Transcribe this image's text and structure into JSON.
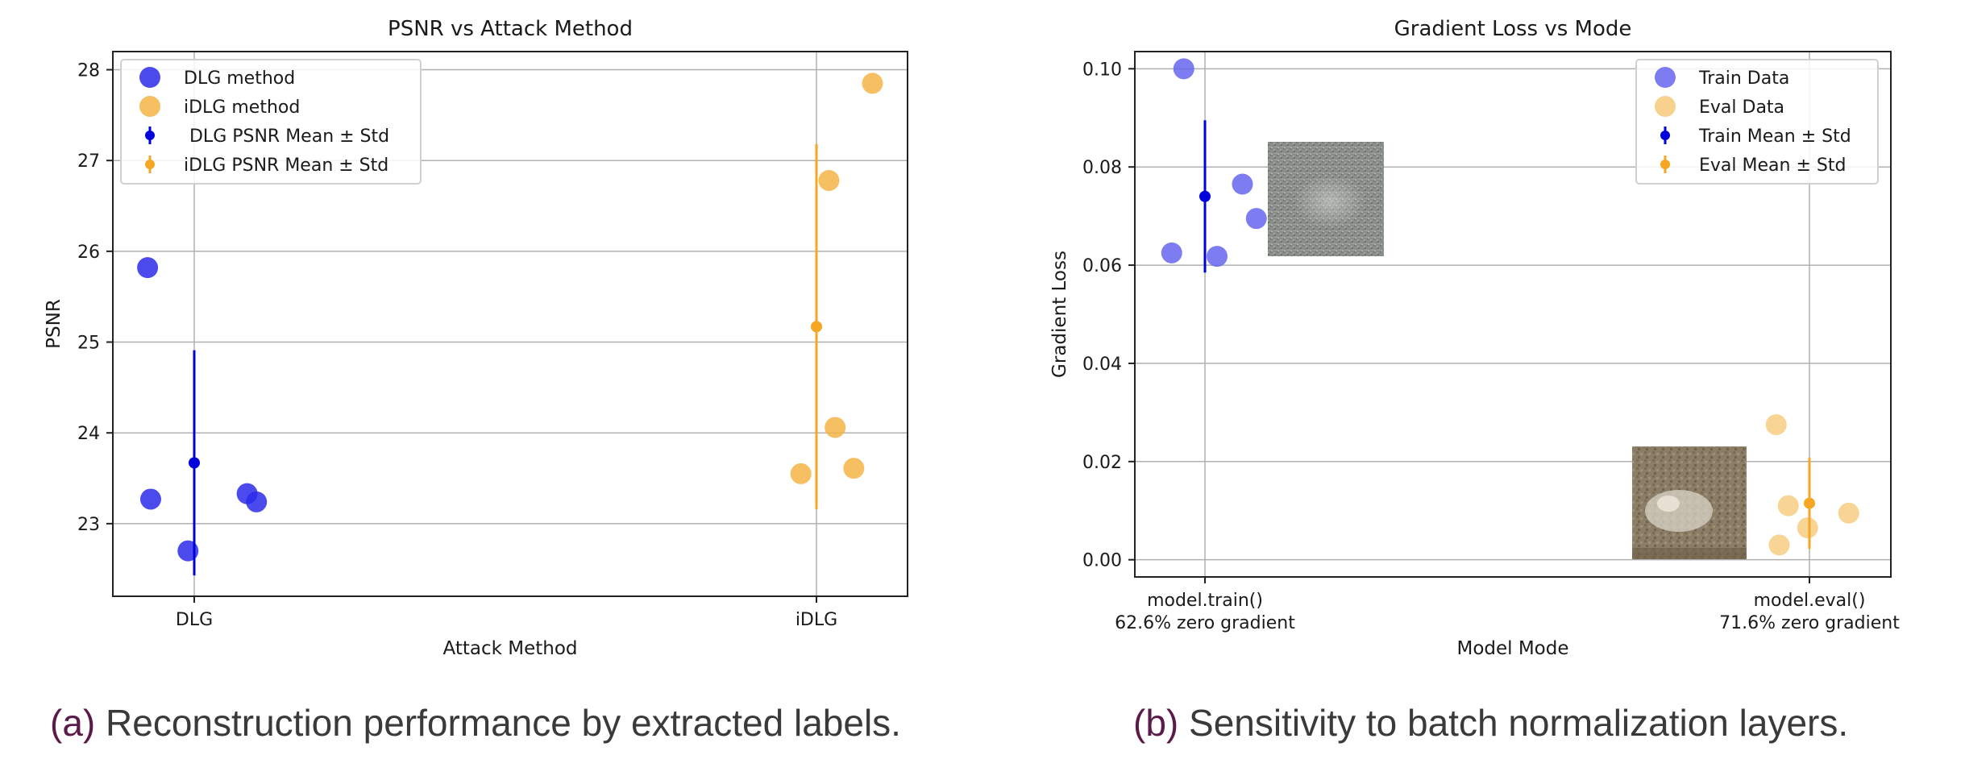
{
  "chart_data": [
    {
      "type": "scatter",
      "title": "PSNR vs Attack Method",
      "xlabel": "Attack Method",
      "ylabel": "PSNR",
      "categories": [
        "DLG",
        "iDLG"
      ],
      "ylim": [
        22.2,
        28.2
      ],
      "yticks": [
        23,
        24,
        25,
        26,
        27,
        28
      ],
      "grid": true,
      "legend_position": "top-left",
      "legend": [
        "DLG method",
        "iDLG method",
        " DLG PSNR Mean ± Std",
        "iDLG PSNR Mean ± Std"
      ],
      "series": [
        {
          "name": "DLG method",
          "color": "#2b2bea",
          "points": [
            {
              "cat": 0,
              "offset": -0.075,
              "y": 25.82
            },
            {
              "cat": 0,
              "offset": -0.07,
              "y": 23.27
            },
            {
              "cat": 0,
              "offset": -0.01,
              "y": 22.7
            },
            {
              "cat": 0,
              "offset": 0.085,
              "y": 23.33
            },
            {
              "cat": 0,
              "offset": 0.1,
              "y": 23.24
            }
          ]
        },
        {
          "name": "iDLG method",
          "color": "#f5b445",
          "points": [
            {
              "cat": 1,
              "offset": 0.09,
              "y": 27.85
            },
            {
              "cat": 1,
              "offset": 0.02,
              "y": 26.78
            },
            {
              "cat": 1,
              "offset": 0.03,
              "y": 24.06
            },
            {
              "cat": 1,
              "offset": 0.06,
              "y": 23.61
            },
            {
              "cat": 1,
              "offset": -0.025,
              "y": 23.55
            }
          ]
        }
      ],
      "errorbars": [
        {
          "name": " DLG PSNR Mean ± Std",
          "color": "#0000dd",
          "cat": 0,
          "mean": 23.67,
          "std": 1.24
        },
        {
          "name": "iDLG PSNR Mean ± Std",
          "color": "#f5a623",
          "cat": 1,
          "mean": 25.17,
          "std": 2.01
        }
      ]
    },
    {
      "type": "scatter",
      "title": "Gradient Loss vs Mode",
      "xlabel": "Model Mode",
      "ylabel": "Gradient Loss",
      "categories": [
        "model.train()\n62.6% zero gradient",
        "model.eval()\n71.6% zero gradient"
      ],
      "ylim": [
        -0.0035,
        0.1035
      ],
      "yticks": [
        0.0,
        0.02,
        0.04,
        0.06,
        0.08,
        0.1
      ],
      "ytick_labels": [
        "0.00",
        "0.02",
        "0.04",
        "0.06",
        "0.08",
        "0.10"
      ],
      "grid": true,
      "legend_position": "top-right",
      "legend": [
        "Train Data",
        "Eval Data",
        "Train Mean ± Std",
        "Eval Mean ± Std"
      ],
      "series": [
        {
          "name": "Train Data",
          "color": "#6666ee",
          "points": [
            {
              "cat": 0,
              "offset": -0.055,
              "y": 0.0625
            },
            {
              "cat": 0,
              "offset": -0.035,
              "y": 0.1
            },
            {
              "cat": 0,
              "offset": 0.02,
              "y": 0.0618
            },
            {
              "cat": 0,
              "offset": 0.062,
              "y": 0.0765
            },
            {
              "cat": 0,
              "offset": 0.085,
              "y": 0.0695
            }
          ]
        },
        {
          "name": "Eval Data",
          "color": "#f7cc82",
          "points": [
            {
              "cat": 1,
              "offset": -0.055,
              "y": 0.0275
            },
            {
              "cat": 1,
              "offset": -0.035,
              "y": 0.011
            },
            {
              "cat": 1,
              "offset": -0.05,
              "y": 0.003
            },
            {
              "cat": 1,
              "offset": -0.003,
              "y": 0.0065
            },
            {
              "cat": 1,
              "offset": 0.065,
              "y": 0.0095
            }
          ]
        }
      ],
      "errorbars": [
        {
          "name": "Train Mean ± Std",
          "color": "#0000dd",
          "cat": 0,
          "mean": 0.074,
          "std": 0.0155
        },
        {
          "name": "Eval Mean ± Std",
          "color": "#f5a623",
          "cat": 1,
          "mean": 0.0115,
          "std": 0.0093
        }
      ],
      "inset_images": [
        "noisy reconstruction thumbnail near train cluster",
        "reconstructed frog thumbnail near eval cluster"
      ]
    }
  ],
  "captions": {
    "a_tag": "(a)",
    "a_text": " Reconstruction performance by extracted labels.",
    "b_tag": "(b)",
    "b_text": " Sensitivity to batch normalization layers."
  }
}
